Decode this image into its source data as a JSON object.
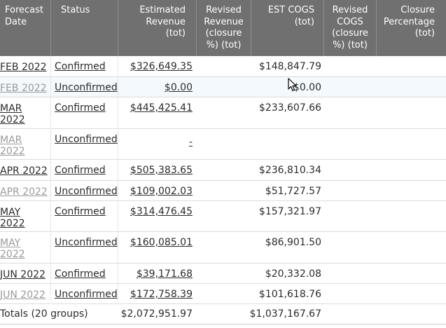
{
  "header": {
    "forecast_date": "Forecast\nDate",
    "status": "Status",
    "estimated_revenue": "Estimated\nRevenue\n(tot)",
    "revised_revenue": "Revised\nRevenue\n(closure\n%) (tot)",
    "est_cogs": "EST COGS\n(tot)",
    "revised_cogs": "Revised\nCOGS\n(closure\n%) (tot)",
    "closure_percentage": "Closure\nPercentage\n(tot)"
  },
  "rows": [
    {
      "date": "FEB 2022",
      "status": "Confirmed",
      "revenue": "$326,649.35",
      "cogs": "$148,847.79"
    },
    {
      "date": "FEB 2022",
      "status": "Unconfirmed",
      "revenue": "$0.00",
      "cogs": "$0.00"
    },
    {
      "date": "MAR 2022",
      "status": "Confirmed",
      "revenue": "$445,425.41",
      "cogs": "$233,607.66"
    },
    {
      "date": "MAR 2022",
      "status": "Unconfirmed",
      "revenue": "-",
      "cogs": ""
    },
    {
      "date": "APR 2022",
      "status": "Confirmed",
      "revenue": "$505,383.65",
      "cogs": "$236,810.34"
    },
    {
      "date": "APR 2022",
      "status": "Unconfirmed",
      "revenue": "$109,002.03",
      "cogs": "$51,727.57"
    },
    {
      "date": "MAY 2022",
      "status": "Confirmed",
      "revenue": "$314,476.45",
      "cogs": "$157,321.97"
    },
    {
      "date": "MAY 2022",
      "status": "Unconfirmed",
      "revenue": "$160,085.01",
      "cogs": "$86,901.50"
    },
    {
      "date": "JUN 2022",
      "status": "Confirmed",
      "revenue": "$39,171.68",
      "cogs": "$20,332.08"
    },
    {
      "date": "JUN 2022",
      "status": "Unconfirmed",
      "revenue": "$172,758.39",
      "cogs": "$101,618.76"
    }
  ],
  "totals": {
    "label": "Totals (20 groups)",
    "revenue": "$2,072,951.97",
    "cogs": "$1,037,167.67"
  },
  "colors": {
    "header_bg": "#707070",
    "unconfirmed_date": "#9a9a9a",
    "highlight_row": "#f3f9fd"
  }
}
